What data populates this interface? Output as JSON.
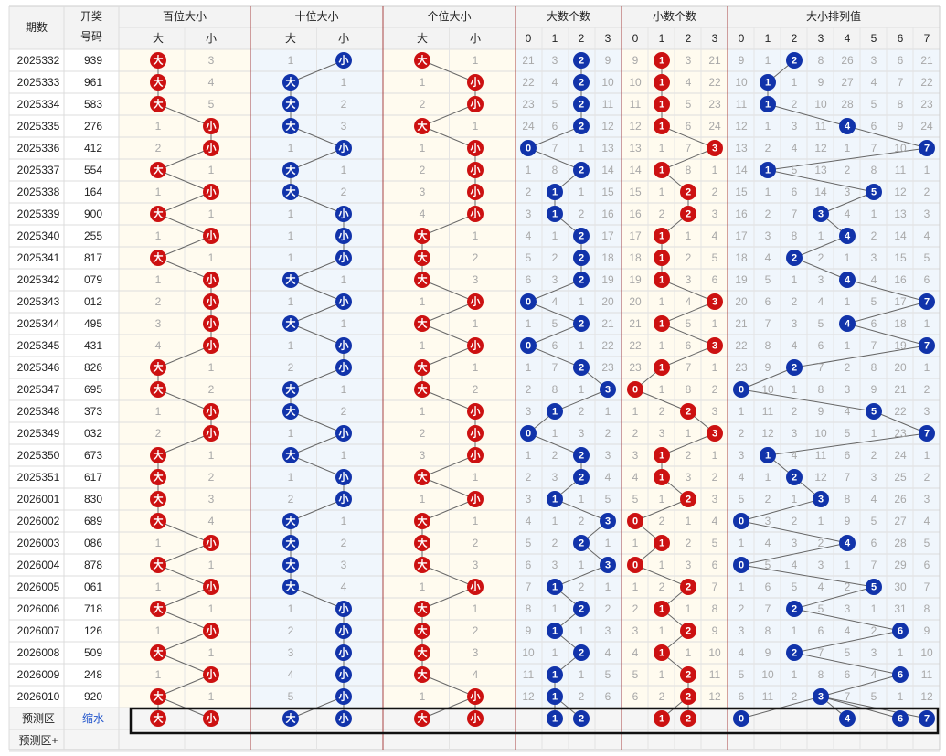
{
  "header": {
    "period": "期数",
    "draw_line1": "开奖",
    "draw_line2": "号码",
    "groups": [
      "百位大小",
      "十位大小",
      "个位大小",
      "大数个数",
      "小数个数",
      "大小排列值"
    ],
    "size_sub": [
      "大",
      "小"
    ],
    "count_sub": [
      "0",
      "1",
      "2",
      "3"
    ],
    "perm_sub": [
      "0",
      "1",
      "2",
      "3",
      "4",
      "5",
      "6",
      "7"
    ]
  },
  "labels": {
    "big": "大",
    "small": "小"
  },
  "footer": {
    "predict": "预测区",
    "shrink": "缩水",
    "predict_plus": "预测区+"
  },
  "predict_marks": {
    "hundreds": [
      "大",
      "小"
    ],
    "tens": [
      "大",
      "小"
    ],
    "units": [
      "大",
      "小"
    ],
    "big_count": [
      "1",
      "2"
    ],
    "small_count": [
      "1",
      "2"
    ],
    "perm": [
      "0",
      "4",
      "6",
      "7"
    ]
  },
  "colors": {
    "red": "#cc1111",
    "blue": "#1133aa",
    "line": "#666666",
    "group_border": "#a94444"
  },
  "rows": [
    {
      "p": "2025332",
      "n": "939",
      "h": [
        0,
        3
      ],
      "t": [
        1,
        0
      ],
      "u": [
        0,
        1
      ],
      "bc": [
        21,
        3,
        "2",
        9
      ],
      "sc": [
        9,
        "1",
        3,
        21
      ],
      "pm": [
        9,
        1,
        "2",
        8,
        26,
        3,
        6,
        21
      ]
    },
    {
      "p": "2025333",
      "n": "961",
      "h": [
        0,
        4
      ],
      "t": [
        0,
        1
      ],
      "u": [
        1,
        0
      ],
      "bc": [
        22,
        4,
        "2",
        10
      ],
      "sc": [
        10,
        "1",
        4,
        22
      ],
      "pm": [
        10,
        "1",
        1,
        9,
        27,
        4,
        7,
        22
      ]
    },
    {
      "p": "2025334",
      "n": "583",
      "h": [
        0,
        5
      ],
      "t": [
        0,
        2
      ],
      "u": [
        2,
        0
      ],
      "bc": [
        23,
        5,
        "2",
        11
      ],
      "sc": [
        11,
        "1",
        5,
        23
      ],
      "pm": [
        11,
        "1",
        2,
        10,
        28,
        5,
        8,
        23
      ]
    },
    {
      "p": "2025335",
      "n": "276",
      "h": [
        1,
        0
      ],
      "t": [
        0,
        3
      ],
      "u": [
        0,
        1
      ],
      "bc": [
        24,
        6,
        "2",
        12
      ],
      "sc": [
        12,
        "1",
        6,
        24
      ],
      "pm": [
        12,
        1,
        3,
        11,
        "4",
        6,
        9,
        24
      ]
    },
    {
      "p": "2025336",
      "n": "412",
      "h": [
        2,
        0
      ],
      "t": [
        1,
        0
      ],
      "u": [
        1,
        0
      ],
      "bc": [
        "0",
        7,
        1,
        13
      ],
      "sc": [
        13,
        1,
        7,
        "3"
      ],
      "pm": [
        13,
        2,
        4,
        12,
        1,
        7,
        10,
        "7"
      ]
    },
    {
      "p": "2025337",
      "n": "554",
      "h": [
        0,
        1
      ],
      "t": [
        0,
        1
      ],
      "u": [
        2,
        0
      ],
      "bc": [
        1,
        8,
        "2",
        14
      ],
      "sc": [
        14,
        "1",
        8,
        1
      ],
      "pm": [
        14,
        "1",
        5,
        13,
        2,
        8,
        11,
        1
      ]
    },
    {
      "p": "2025338",
      "n": "164",
      "h": [
        1,
        0
      ],
      "t": [
        0,
        2
      ],
      "u": [
        3,
        0
      ],
      "bc": [
        2,
        "1",
        1,
        15
      ],
      "sc": [
        15,
        1,
        "2",
        2
      ],
      "pm": [
        15,
        1,
        6,
        14,
        3,
        "5",
        12,
        2
      ]
    },
    {
      "p": "2025339",
      "n": "900",
      "h": [
        0,
        1
      ],
      "t": [
        1,
        0
      ],
      "u": [
        4,
        0
      ],
      "bc": [
        3,
        "1",
        2,
        16
      ],
      "sc": [
        16,
        2,
        "2",
        3
      ],
      "pm": [
        16,
        2,
        7,
        "3",
        4,
        1,
        13,
        3
      ]
    },
    {
      "p": "2025340",
      "n": "255",
      "h": [
        1,
        0
      ],
      "t": [
        1,
        0
      ],
      "u": [
        0,
        1
      ],
      "bc": [
        4,
        1,
        "2",
        17
      ],
      "sc": [
        17,
        "1",
        1,
        4
      ],
      "pm": [
        17,
        3,
        8,
        1,
        "4",
        2,
        14,
        4
      ]
    },
    {
      "p": "2025341",
      "n": "817",
      "h": [
        0,
        1
      ],
      "t": [
        1,
        0
      ],
      "u": [
        0,
        2
      ],
      "bc": [
        5,
        2,
        "2",
        18
      ],
      "sc": [
        18,
        "1",
        2,
        5
      ],
      "pm": [
        18,
        4,
        "2",
        2,
        1,
        3,
        15,
        5
      ]
    },
    {
      "p": "2025342",
      "n": "079",
      "h": [
        1,
        0
      ],
      "t": [
        0,
        1
      ],
      "u": [
        0,
        3
      ],
      "bc": [
        6,
        3,
        "2",
        19
      ],
      "sc": [
        19,
        "1",
        3,
        6
      ],
      "pm": [
        19,
        5,
        1,
        3,
        "4",
        4,
        16,
        6
      ]
    },
    {
      "p": "2025343",
      "n": "012",
      "h": [
        2,
        0
      ],
      "t": [
        1,
        0
      ],
      "u": [
        1,
        0
      ],
      "bc": [
        "0",
        4,
        1,
        20
      ],
      "sc": [
        20,
        1,
        4,
        "3"
      ],
      "pm": [
        20,
        6,
        2,
        4,
        1,
        5,
        17,
        "7"
      ]
    },
    {
      "p": "2025344",
      "n": "495",
      "h": [
        3,
        0
      ],
      "t": [
        0,
        1
      ],
      "u": [
        0,
        1
      ],
      "bc": [
        1,
        5,
        "2",
        21
      ],
      "sc": [
        21,
        "1",
        5,
        1
      ],
      "pm": [
        21,
        7,
        3,
        5,
        "4",
        6,
        18,
        1
      ]
    },
    {
      "p": "2025345",
      "n": "431",
      "h": [
        4,
        0
      ],
      "t": [
        1,
        0
      ],
      "u": [
        1,
        0
      ],
      "bc": [
        "0",
        6,
        1,
        22
      ],
      "sc": [
        22,
        1,
        6,
        "3"
      ],
      "pm": [
        22,
        8,
        4,
        6,
        1,
        7,
        19,
        "7"
      ]
    },
    {
      "p": "2025346",
      "n": "826",
      "h": [
        0,
        1
      ],
      "t": [
        2,
        0
      ],
      "u": [
        0,
        1
      ],
      "bc": [
        1,
        7,
        "2",
        23
      ],
      "sc": [
        23,
        "1",
        7,
        1
      ],
      "pm": [
        23,
        9,
        "2",
        7,
        2,
        8,
        20,
        1
      ]
    },
    {
      "p": "2025347",
      "n": "695",
      "h": [
        0,
        2
      ],
      "t": [
        0,
        1
      ],
      "u": [
        0,
        2
      ],
      "bc": [
        2,
        8,
        1,
        "3"
      ],
      "sc": [
        "0",
        1,
        8,
        2
      ],
      "pm": [
        "0",
        10,
        1,
        8,
        3,
        9,
        21,
        2
      ]
    },
    {
      "p": "2025348",
      "n": "373",
      "h": [
        1,
        0
      ],
      "t": [
        0,
        2
      ],
      "u": [
        1,
        0
      ],
      "bc": [
        3,
        "1",
        2,
        1
      ],
      "sc": [
        1,
        2,
        "2",
        3
      ],
      "pm": [
        1,
        11,
        2,
        9,
        4,
        "5",
        22,
        3
      ]
    },
    {
      "p": "2025349",
      "n": "032",
      "h": [
        2,
        0
      ],
      "t": [
        1,
        0
      ],
      "u": [
        2,
        0
      ],
      "bc": [
        "0",
        1,
        3,
        2
      ],
      "sc": [
        2,
        3,
        1,
        "3"
      ],
      "pm": [
        2,
        12,
        3,
        10,
        5,
        1,
        23,
        "7"
      ]
    },
    {
      "p": "2025350",
      "n": "673",
      "h": [
        0,
        1
      ],
      "t": [
        0,
        1
      ],
      "u": [
        3,
        0
      ],
      "bc": [
        1,
        2,
        "2",
        3
      ],
      "sc": [
        3,
        "1",
        2,
        1
      ],
      "pm": [
        3,
        "1",
        4,
        11,
        6,
        2,
        24,
        1
      ]
    },
    {
      "p": "2025351",
      "n": "617",
      "h": [
        0,
        2
      ],
      "t": [
        1,
        0
      ],
      "u": [
        0,
        1
      ],
      "bc": [
        2,
        3,
        "2",
        4
      ],
      "sc": [
        4,
        "1",
        3,
        2
      ],
      "pm": [
        4,
        1,
        "2",
        12,
        7,
        3,
        25,
        2
      ]
    },
    {
      "p": "2026001",
      "n": "830",
      "h": [
        0,
        3
      ],
      "t": [
        2,
        0
      ],
      "u": [
        1,
        0
      ],
      "bc": [
        3,
        "1",
        1,
        5
      ],
      "sc": [
        5,
        1,
        "2",
        3
      ],
      "pm": [
        5,
        2,
        1,
        "3",
        8,
        4,
        26,
        3
      ]
    },
    {
      "p": "2026002",
      "n": "689",
      "h": [
        0,
        4
      ],
      "t": [
        0,
        1
      ],
      "u": [
        0,
        1
      ],
      "bc": [
        4,
        1,
        2,
        "3"
      ],
      "sc": [
        "0",
        2,
        1,
        4
      ],
      "pm": [
        "0",
        3,
        2,
        1,
        9,
        5,
        27,
        4
      ]
    },
    {
      "p": "2026003",
      "n": "086",
      "h": [
        1,
        0
      ],
      "t": [
        0,
        2
      ],
      "u": [
        0,
        2
      ],
      "bc": [
        5,
        2,
        "2",
        1
      ],
      "sc": [
        1,
        "1",
        2,
        5
      ],
      "pm": [
        1,
        4,
        3,
        2,
        "4",
        6,
        28,
        5
      ]
    },
    {
      "p": "2026004",
      "n": "878",
      "h": [
        0,
        1
      ],
      "t": [
        0,
        3
      ],
      "u": [
        0,
        3
      ],
      "bc": [
        6,
        3,
        1,
        "3"
      ],
      "sc": [
        "0",
        1,
        3,
        6
      ],
      "pm": [
        "0",
        5,
        4,
        3,
        1,
        7,
        29,
        6
      ]
    },
    {
      "p": "2026005",
      "n": "061",
      "h": [
        1,
        0
      ],
      "t": [
        0,
        4
      ],
      "u": [
        1,
        0
      ],
      "bc": [
        7,
        "1",
        2,
        1
      ],
      "sc": [
        1,
        2,
        "2",
        7
      ],
      "pm": [
        1,
        6,
        5,
        4,
        2,
        "5",
        30,
        7
      ]
    },
    {
      "p": "2026006",
      "n": "718",
      "h": [
        0,
        1
      ],
      "t": [
        1,
        0
      ],
      "u": [
        0,
        1
      ],
      "bc": [
        8,
        1,
        "2",
        2
      ],
      "sc": [
        2,
        "1",
        1,
        8
      ],
      "pm": [
        2,
        7,
        "2",
        5,
        3,
        1,
        31,
        8
      ]
    },
    {
      "p": "2026007",
      "n": "126",
      "h": [
        1,
        0
      ],
      "t": [
        2,
        0
      ],
      "u": [
        0,
        2
      ],
      "bc": [
        9,
        "1",
        1,
        3
      ],
      "sc": [
        3,
        1,
        "2",
        9
      ],
      "pm": [
        3,
        8,
        1,
        6,
        4,
        2,
        "6",
        9
      ]
    },
    {
      "p": "2026008",
      "n": "509",
      "h": [
        0,
        1
      ],
      "t": [
        3,
        0
      ],
      "u": [
        0,
        3
      ],
      "bc": [
        10,
        1,
        "2",
        4
      ],
      "sc": [
        4,
        "1",
        1,
        10
      ],
      "pm": [
        4,
        9,
        "2",
        7,
        5,
        3,
        1,
        10
      ]
    },
    {
      "p": "2026009",
      "n": "248",
      "h": [
        1,
        0
      ],
      "t": [
        4,
        0
      ],
      "u": [
        0,
        4
      ],
      "bc": [
        11,
        "1",
        1,
        5
      ],
      "sc": [
        5,
        1,
        "2",
        11
      ],
      "pm": [
        5,
        10,
        1,
        8,
        6,
        4,
        "6",
        11
      ]
    },
    {
      "p": "2026010",
      "n": "920",
      "h": [
        0,
        1
      ],
      "t": [
        5,
        0
      ],
      "u": [
        1,
        0
      ],
      "bc": [
        12,
        "1",
        2,
        6
      ],
      "sc": [
        6,
        2,
        "2",
        12
      ],
      "pm": [
        6,
        11,
        2,
        "3",
        7,
        5,
        1,
        12
      ]
    }
  ]
}
